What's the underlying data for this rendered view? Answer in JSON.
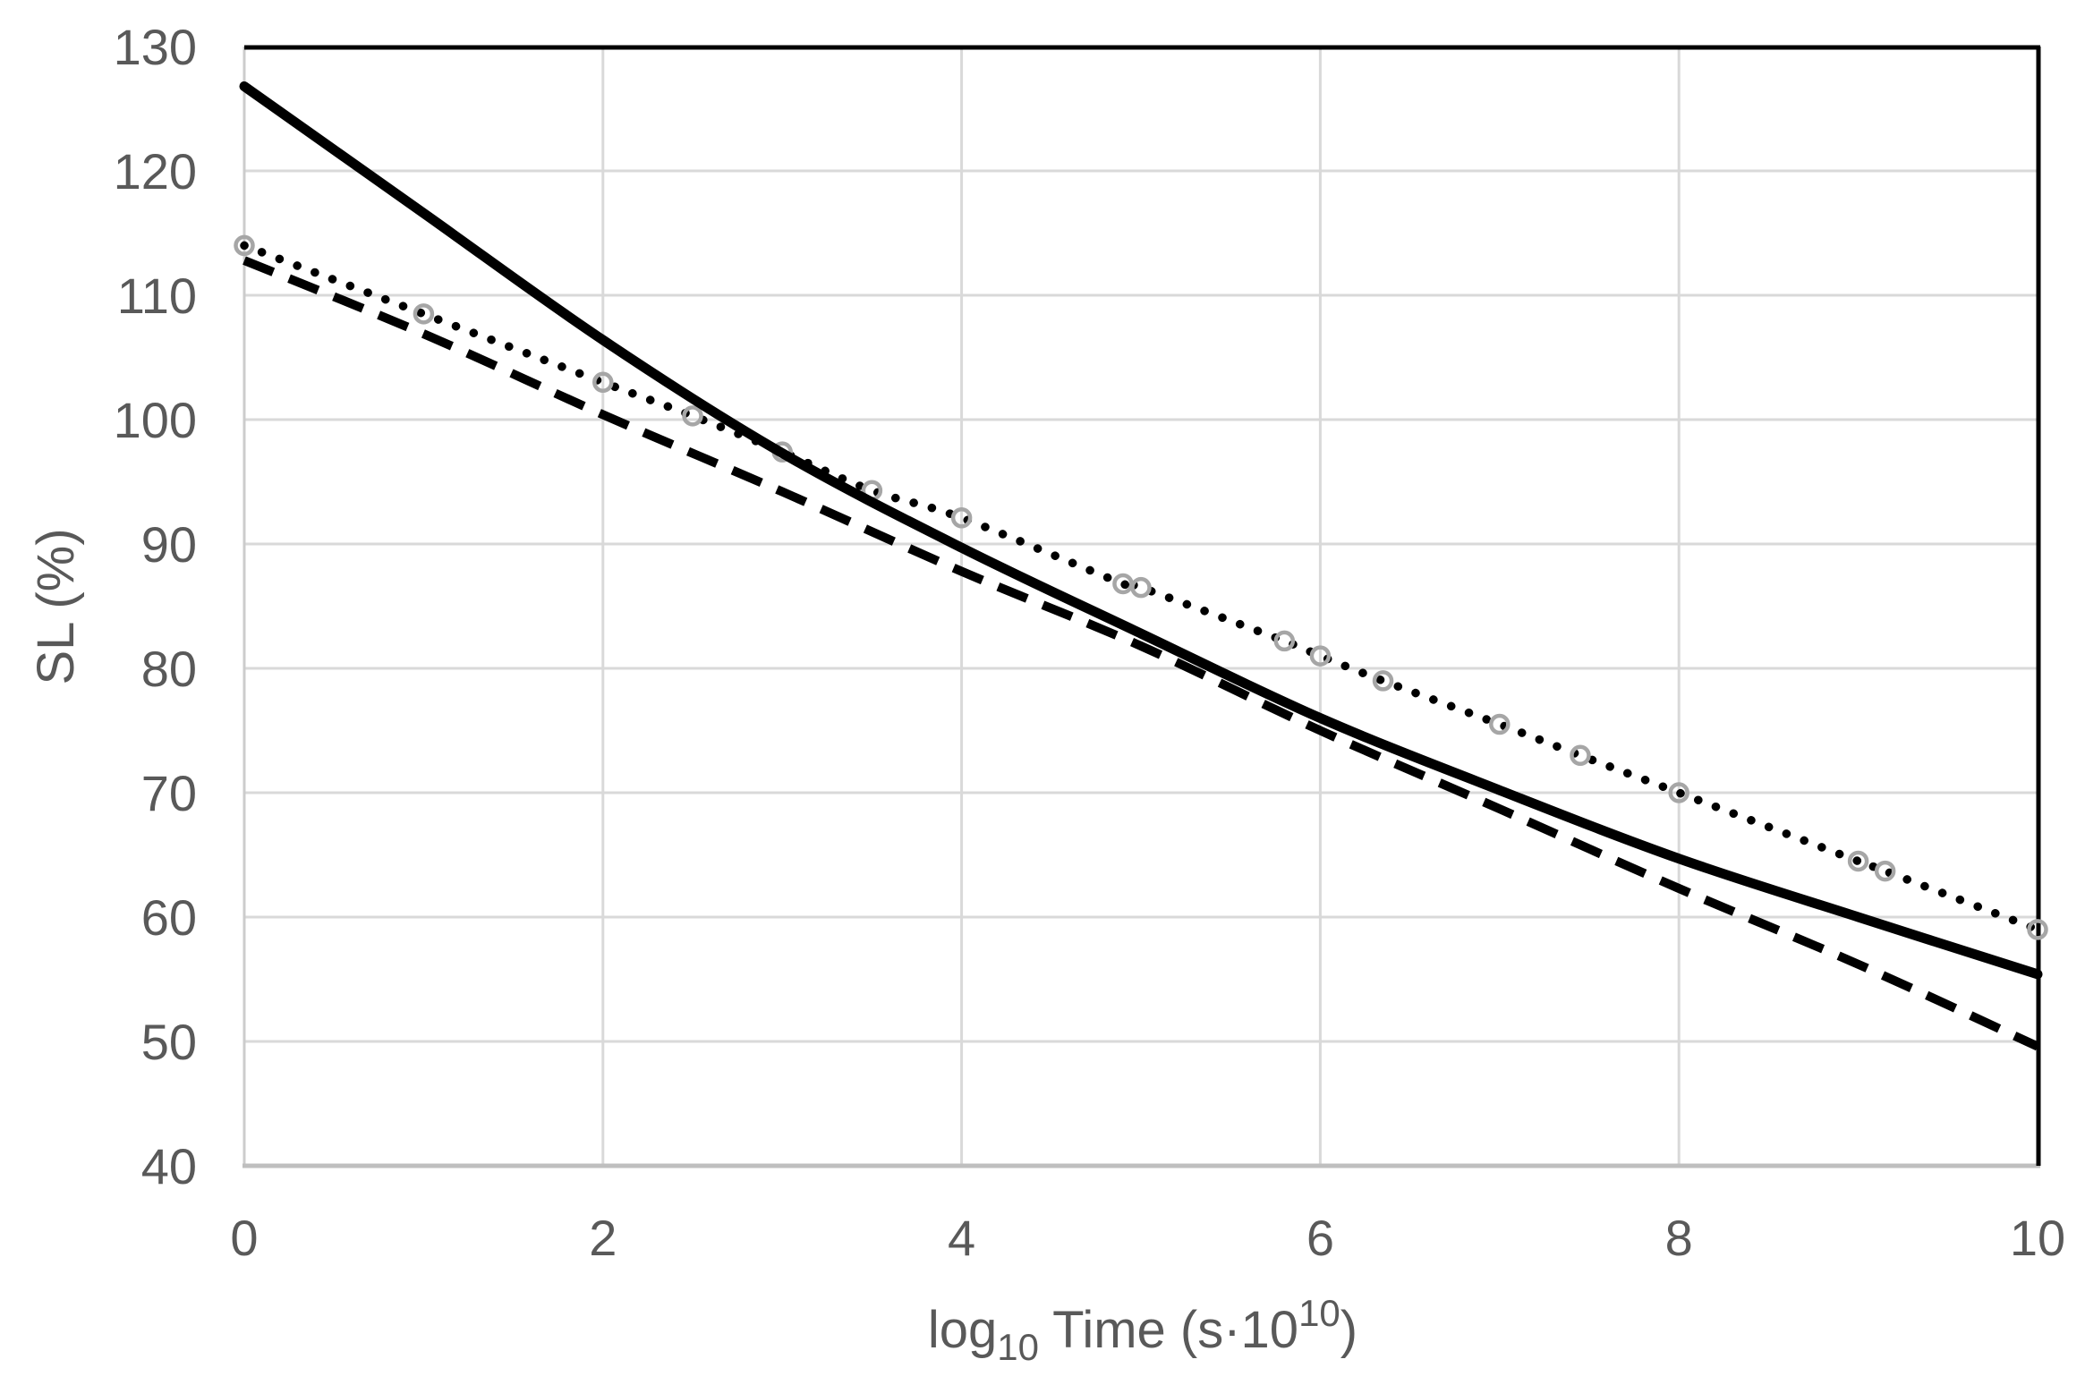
{
  "chart_data": {
    "type": "line",
    "title": "",
    "xlabel": "log10 Time (s·10^10)",
    "xlabel_parts": {
      "prefix": "log",
      "sub": "10",
      "mid": " Time (s·10",
      "sup": "10",
      "suffix": ")"
    },
    "ylabel": "SL (%)",
    "xlim": [
      0,
      10
    ],
    "ylim": [
      40,
      130
    ],
    "xticks": [
      0,
      2,
      4,
      6,
      8,
      10
    ],
    "yticks": [
      40,
      50,
      60,
      70,
      80,
      90,
      100,
      110,
      120,
      130
    ],
    "grid": true,
    "legend": "none",
    "colors": {
      "series_line": "#000000",
      "marker_ring": "#a6a6a6",
      "gridline": "#d9d9d9",
      "axis_left": "#cccccc",
      "axis_bottom": "#bfbfbf",
      "border_top_right": "#000000",
      "tick_text": "#595959",
      "background": "#ffffff"
    },
    "series": [
      {
        "name": "solid-curve",
        "line_style": "solid",
        "marker": "none",
        "x": [
          0,
          1,
          2,
          3,
          4,
          5,
          6,
          7,
          8,
          9,
          10
        ],
        "y": [
          126.8,
          116.6,
          106.4,
          97.3,
          89.7,
          82.8,
          76.0,
          70.2,
          64.7,
          60.0,
          55.4
        ]
      },
      {
        "name": "dashed-line",
        "line_style": "dashed",
        "marker": "none",
        "x": [
          0,
          1,
          2,
          3,
          4,
          5,
          6,
          7,
          8,
          9,
          10
        ],
        "y": [
          112.8,
          106.9,
          100.4,
          94.2,
          87.8,
          81.8,
          75.0,
          68.7,
          62.3,
          56.2,
          49.6
        ]
      },
      {
        "name": "dotted-with-circle-markers",
        "line_style": "dotted",
        "marker": "circle",
        "x": [
          0,
          1,
          2,
          2.5,
          3,
          3.5,
          4,
          4.9,
          5,
          5.8,
          6,
          6.35,
          7,
          7.45,
          8,
          9,
          9.15,
          10
        ],
        "y": [
          114.0,
          108.5,
          103.0,
          100.3,
          97.4,
          94.3,
          92.1,
          86.8,
          86.5,
          82.2,
          81.0,
          79.0,
          75.5,
          73.0,
          70.0,
          64.5,
          63.7,
          59.0
        ]
      }
    ]
  }
}
